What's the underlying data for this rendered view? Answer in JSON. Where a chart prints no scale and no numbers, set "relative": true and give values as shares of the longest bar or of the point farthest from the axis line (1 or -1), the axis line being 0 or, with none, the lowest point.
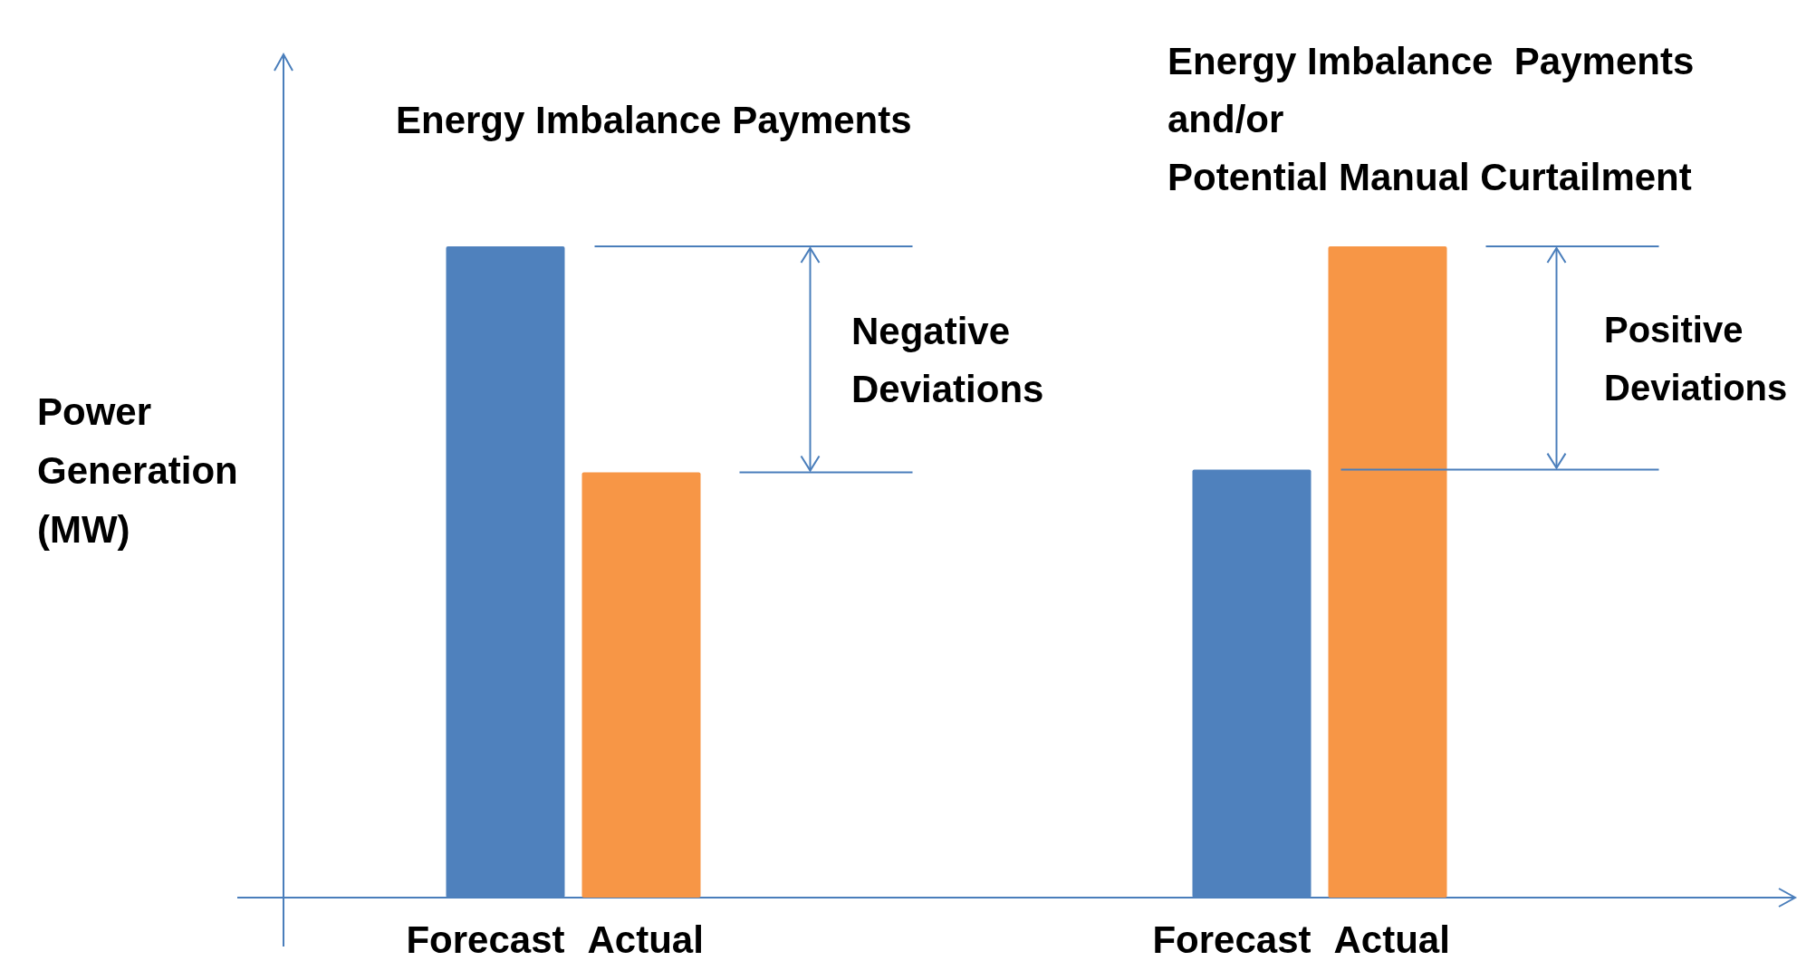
{
  "chart_data": {
    "type": "bar",
    "relative": true,
    "ylabel": "Power\nGeneration\n(MW)",
    "categories": [
      null,
      null
    ],
    "series": [
      {
        "name": "Forecast",
        "color": "#4f81bd",
        "values": [
          1,
          0.657
        ]
      },
      {
        "name": "Actual",
        "color": "#f79646",
        "values": [
          0.653,
          1
        ]
      }
    ],
    "annotations": [
      "Energy Imbalance Payments",
      "Energy Imbalance  Payments\nand/or\nPotential Manual Curtailment",
      "Negative\nDeviations",
      "Positive\nDeviations"
    ]
  }
}
